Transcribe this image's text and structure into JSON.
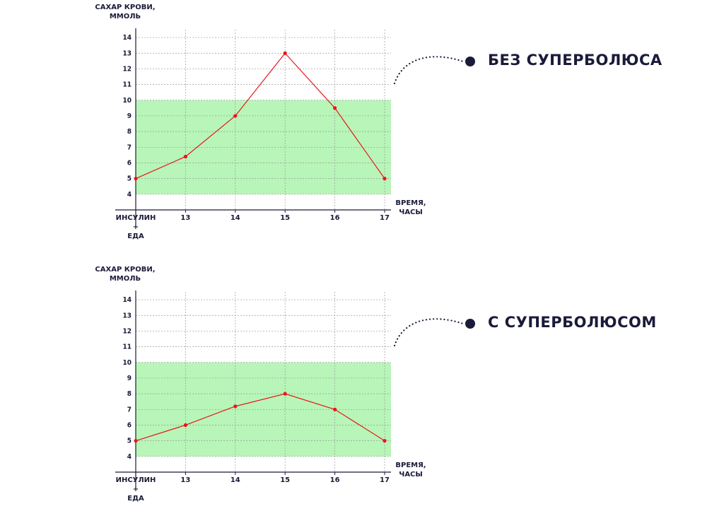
{
  "chart_data": [
    {
      "type": "line",
      "y_label": "САХАР КРОВИ,\nММОЛЬ",
      "x_label": "ВРЕМЯ,\nЧАСЫ",
      "categories": [
        "ИНСУЛИН\n+\nЕДА",
        "13",
        "14",
        "15",
        "16",
        "17"
      ],
      "series": [
        {
          "name": "БЕЗ СУПЕРБОЛЮСА",
          "color": "#e8161b",
          "values": [
            5,
            6.4,
            9,
            13,
            9.5,
            5
          ]
        }
      ],
      "ylim": [
        3,
        14.5
      ],
      "yticks": [
        4,
        5,
        6,
        7,
        8,
        9,
        10,
        11,
        12,
        13,
        14
      ],
      "grid": true,
      "target_range": [
        4,
        10
      ],
      "target_color": "#b8f5b8"
    },
    {
      "type": "line",
      "y_label": "САХАР КРОВИ,\nММОЛЬ",
      "x_label": "ВРЕМЯ,\nЧАСЫ",
      "categories": [
        "ИНСУЛИН\n+\nЕДА",
        "13",
        "14",
        "15",
        "16",
        "17"
      ],
      "series": [
        {
          "name": "С СУПЕРБОЛЮСОМ",
          "color": "#e8161b",
          "values": [
            5,
            6,
            7.2,
            8,
            7,
            5
          ]
        }
      ],
      "ylim": [
        3,
        14.5
      ],
      "yticks": [
        4,
        5,
        6,
        7,
        8,
        9,
        10,
        11,
        12,
        13,
        14
      ],
      "grid": true,
      "target_range": [
        4,
        10
      ],
      "target_color": "#b8f5b8"
    }
  ]
}
